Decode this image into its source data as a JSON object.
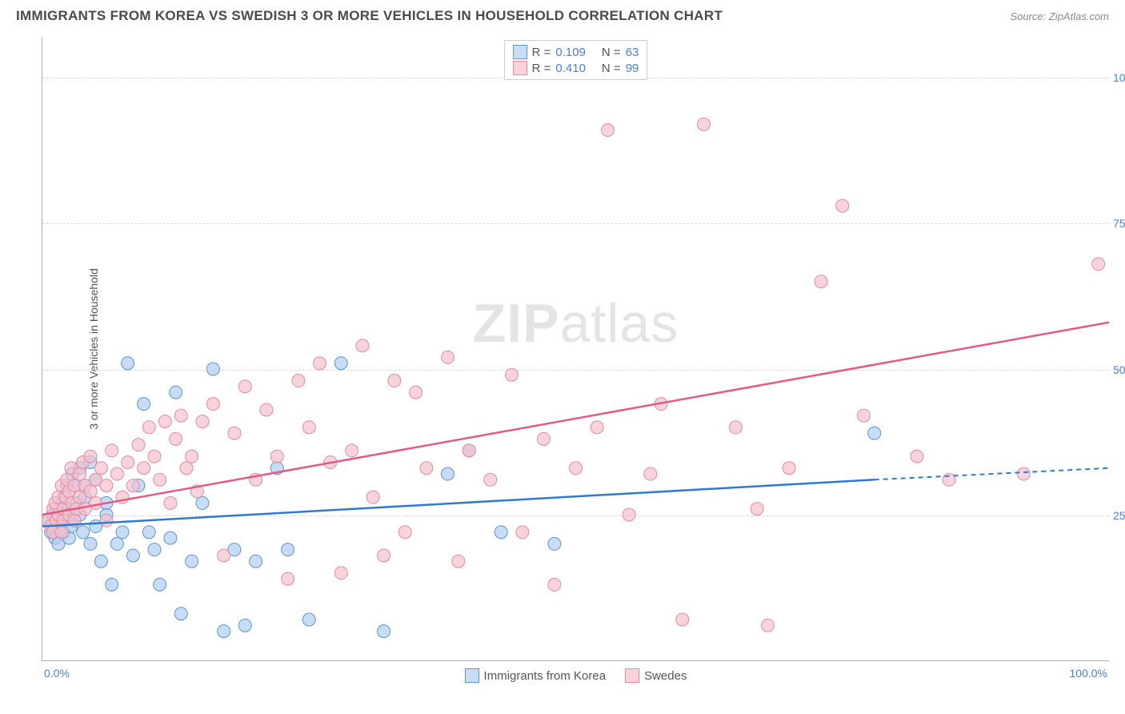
{
  "title": "IMMIGRANTS FROM KOREA VS SWEDISH 3 OR MORE VEHICLES IN HOUSEHOLD CORRELATION CHART",
  "source": "Source: ZipAtlas.com",
  "watermark_bold": "ZIP",
  "watermark_rest": "atlas",
  "y_axis_label": "3 or more Vehicles in Household",
  "x_min_label": "0.0%",
  "x_max_label": "100.0%",
  "y_labels": [
    "25.0%",
    "50.0%",
    "75.0%",
    "100.0%"
  ],
  "chart": {
    "type": "scatter",
    "xlim": [
      0,
      100
    ],
    "ylim": [
      0,
      107
    ],
    "grid_y": [
      25,
      50,
      75,
      100
    ],
    "grid_color": "#d8d8d8",
    "background_color": "#ffffff",
    "axis_color": "#b0b0b0",
    "tick_color": "#4a7fd8",
    "marker_radius": 8,
    "marker_stroke_width": 1,
    "trend_line_width": 2.5
  },
  "series": [
    {
      "id": "korea",
      "label": "Immigrants from Korea",
      "R_label": "R =",
      "R": "0.109",
      "N_label": "N =",
      "N": "63",
      "fill": "#aecdf0b0",
      "stroke": "#5b94d6",
      "trend_color": "#2f7ad1",
      "trend": {
        "x1": 0,
        "y1": 23,
        "x2": 78,
        "y2": 31
      },
      "trend_dashed_extension": {
        "x1": 78,
        "y1": 31,
        "x2": 100,
        "y2": 33
      },
      "points": [
        [
          0.5,
          24
        ],
        [
          0.8,
          22
        ],
        [
          1,
          23
        ],
        [
          1,
          25
        ],
        [
          1.2,
          21
        ],
        [
          1.3,
          26
        ],
        [
          1.5,
          23
        ],
        [
          1.5,
          20
        ],
        [
          1.8,
          27
        ],
        [
          1.8,
          24
        ],
        [
          2,
          22
        ],
        [
          2,
          28
        ],
        [
          2.2,
          25
        ],
        [
          2.3,
          30
        ],
        [
          2.5,
          21
        ],
        [
          2.5,
          26
        ],
        [
          2.7,
          23
        ],
        [
          2.8,
          32
        ],
        [
          3,
          30
        ],
        [
          3,
          24
        ],
        [
          3.2,
          27
        ],
        [
          3.5,
          25
        ],
        [
          3.5,
          33
        ],
        [
          3.8,
          22
        ],
        [
          4,
          30
        ],
        [
          4,
          28
        ],
        [
          4.5,
          20
        ],
        [
          4.5,
          34
        ],
        [
          5,
          23
        ],
        [
          5,
          31
        ],
        [
          5.5,
          17
        ],
        [
          6,
          25
        ],
        [
          6,
          27
        ],
        [
          6.5,
          13
        ],
        [
          7,
          20
        ],
        [
          7.5,
          22
        ],
        [
          8,
          51
        ],
        [
          8.5,
          18
        ],
        [
          9,
          30
        ],
        [
          9.5,
          44
        ],
        [
          10,
          22
        ],
        [
          10.5,
          19
        ],
        [
          11,
          13
        ],
        [
          12,
          21
        ],
        [
          12.5,
          46
        ],
        [
          13,
          8
        ],
        [
          14,
          17
        ],
        [
          15,
          27
        ],
        [
          16,
          50
        ],
        [
          17,
          5
        ],
        [
          18,
          19
        ],
        [
          19,
          6
        ],
        [
          20,
          17
        ],
        [
          22,
          33
        ],
        [
          23,
          19
        ],
        [
          25,
          7
        ],
        [
          28,
          51
        ],
        [
          32,
          5
        ],
        [
          38,
          32
        ],
        [
          40,
          36
        ],
        [
          43,
          22
        ],
        [
          48,
          20
        ],
        [
          78,
          39
        ]
      ]
    },
    {
      "id": "swedes",
      "label": "Swedes",
      "R_label": "R =",
      "R": "0.410",
      "N_label": "N =",
      "N": "99",
      "fill": "#f4c1ccb0",
      "stroke": "#e889a1",
      "trend_color": "#e15b85",
      "trend": {
        "x1": 0,
        "y1": 25,
        "x2": 100,
        "y2": 58
      },
      "points": [
        [
          0.5,
          24
        ],
        [
          0.8,
          23
        ],
        [
          1,
          26
        ],
        [
          1,
          22
        ],
        [
          1.2,
          27
        ],
        [
          1.3,
          24
        ],
        [
          1.5,
          28
        ],
        [
          1.5,
          25
        ],
        [
          1.8,
          22
        ],
        [
          1.8,
          30
        ],
        [
          2,
          26
        ],
        [
          2,
          24
        ],
        [
          2.2,
          28
        ],
        [
          2.3,
          31
        ],
        [
          2.5,
          25
        ],
        [
          2.5,
          29
        ],
        [
          2.7,
          33
        ],
        [
          2.8,
          27
        ],
        [
          3,
          30
        ],
        [
          3,
          24
        ],
        [
          3.2,
          26
        ],
        [
          3.5,
          32
        ],
        [
          3.5,
          28
        ],
        [
          3.8,
          34
        ],
        [
          4,
          30
        ],
        [
          4,
          26
        ],
        [
          4.5,
          29
        ],
        [
          4.5,
          35
        ],
        [
          5,
          31
        ],
        [
          5,
          27
        ],
        [
          5.5,
          33
        ],
        [
          6,
          24
        ],
        [
          6,
          30
        ],
        [
          6.5,
          36
        ],
        [
          7,
          32
        ],
        [
          7.5,
          28
        ],
        [
          8,
          34
        ],
        [
          8.5,
          30
        ],
        [
          9,
          37
        ],
        [
          9.5,
          33
        ],
        [
          10,
          40
        ],
        [
          10.5,
          35
        ],
        [
          11,
          31
        ],
        [
          11.5,
          41
        ],
        [
          12,
          27
        ],
        [
          12.5,
          38
        ],
        [
          13,
          42
        ],
        [
          13.5,
          33
        ],
        [
          14,
          35
        ],
        [
          14.5,
          29
        ],
        [
          15,
          41
        ],
        [
          16,
          44
        ],
        [
          17,
          18
        ],
        [
          18,
          39
        ],
        [
          19,
          47
        ],
        [
          20,
          31
        ],
        [
          21,
          43
        ],
        [
          22,
          35
        ],
        [
          23,
          14
        ],
        [
          24,
          48
        ],
        [
          25,
          40
        ],
        [
          26,
          51
        ],
        [
          27,
          34
        ],
        [
          28,
          15
        ],
        [
          29,
          36
        ],
        [
          30,
          54
        ],
        [
          31,
          28
        ],
        [
          32,
          18
        ],
        [
          33,
          48
        ],
        [
          34,
          22
        ],
        [
          35,
          46
        ],
        [
          36,
          33
        ],
        [
          38,
          52
        ],
        [
          39,
          17
        ],
        [
          40,
          36
        ],
        [
          42,
          31
        ],
        [
          44,
          49
        ],
        [
          45,
          22
        ],
        [
          47,
          38
        ],
        [
          48,
          13
        ],
        [
          50,
          33
        ],
        [
          52,
          40
        ],
        [
          53,
          91
        ],
        [
          55,
          25
        ],
        [
          57,
          32
        ],
        [
          58,
          44
        ],
        [
          60,
          7
        ],
        [
          62,
          92
        ],
        [
          65,
          40
        ],
        [
          67,
          26
        ],
        [
          68,
          6
        ],
        [
          70,
          33
        ],
        [
          73,
          65
        ],
        [
          75,
          78
        ],
        [
          77,
          42
        ],
        [
          82,
          35
        ],
        [
          85,
          31
        ],
        [
          92,
          32
        ],
        [
          99,
          68
        ]
      ]
    }
  ]
}
